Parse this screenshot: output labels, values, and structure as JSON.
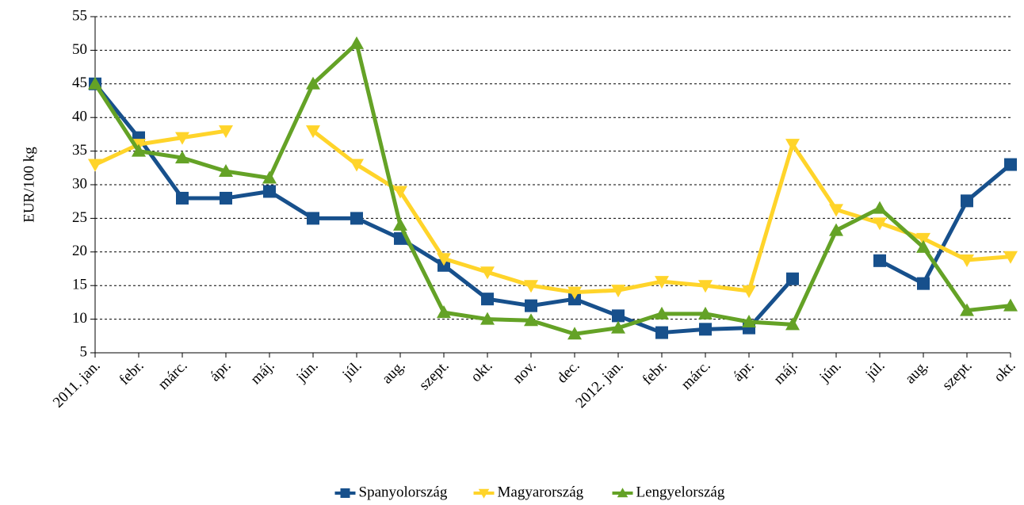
{
  "chart_data": {
    "type": "line",
    "y_label": "EUR/100 kg",
    "categories": [
      "2011. jan.",
      "febr.",
      "márc.",
      "ápr.",
      "máj.",
      "jún.",
      "júl.",
      "aug.",
      "szept.",
      "okt.",
      "nov.",
      "dec.",
      "2012. jan.",
      "febr.",
      "márc.",
      "ápr.",
      "máj.",
      "jún.",
      "júl.",
      "aug.",
      "szept.",
      "okt."
    ],
    "series": [
      {
        "name": "Spanyolország",
        "color": "#17508c",
        "marker": "square",
        "values": [
          45,
          37,
          28,
          28,
          29,
          25,
          25,
          22,
          18,
          13,
          12,
          13,
          10.5,
          8,
          8.5,
          8.7,
          16,
          null,
          18.7,
          15.3,
          27.6,
          33
        ]
      },
      {
        "name": "Magyarország",
        "color": "#ffd42a",
        "marker": "triangle-down",
        "values": [
          33,
          36,
          37,
          38,
          null,
          38,
          33,
          29,
          19,
          17,
          15,
          14,
          14.3,
          15.6,
          15,
          14.2,
          36,
          26.3,
          24.3,
          22,
          18.8,
          19.3
        ]
      },
      {
        "name": "Lengyelország",
        "color": "#64a226",
        "marker": "triangle-up",
        "values": [
          45,
          35,
          34,
          32,
          31,
          45,
          51,
          24,
          11,
          10,
          9.8,
          7.8,
          8.7,
          10.8,
          10.8,
          9.6,
          9.2,
          23.2,
          26.5,
          20.7,
          11.3,
          12
        ]
      }
    ],
    "ylim": [
      5,
      55
    ],
    "yticks": [
      5,
      10,
      15,
      20,
      25,
      30,
      35,
      40,
      45,
      50,
      55
    ],
    "grid": true,
    "legend": "bottom"
  }
}
